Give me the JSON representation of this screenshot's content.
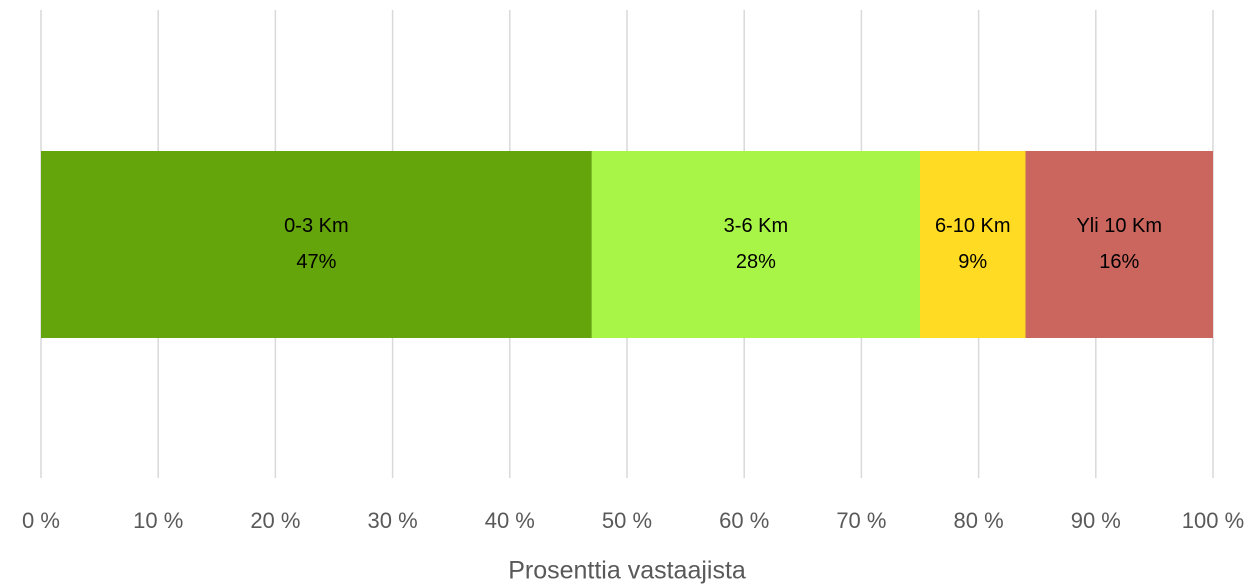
{
  "chart_data": {
    "type": "stacked-bar-horizontal",
    "x_label": "Prosenttia vastaajista",
    "categories": [
      null
    ],
    "series": [
      {
        "name": "0-3 Km",
        "color": "#63a50b",
        "values": [
          47
        ],
        "value_labels": [
          "47%"
        ]
      },
      {
        "name": "3-6 Km",
        "color": "#a9f547",
        "values": [
          28
        ],
        "value_labels": [
          "28%"
        ]
      },
      {
        "name": "6-10 Km",
        "color": "#ffdb24",
        "values": [
          9
        ],
        "value_labels": [
          "9%"
        ]
      },
      {
        "name": "Yli 10 Km",
        "color": "#cb665e",
        "values": [
          16
        ],
        "value_labels": [
          "16%"
        ]
      }
    ],
    "xlim": [
      0,
      100
    ],
    "xticks": [
      {
        "value": 0,
        "label": "0 %"
      },
      {
        "value": 10,
        "label": "10 %"
      },
      {
        "value": 20,
        "label": "20 %"
      },
      {
        "value": 30,
        "label": "30 %"
      },
      {
        "value": 40,
        "label": "40 %"
      },
      {
        "value": 50,
        "label": "50 %"
      },
      {
        "value": 60,
        "label": "60 %"
      },
      {
        "value": 70,
        "label": "70 %"
      },
      {
        "value": 80,
        "label": "80 %"
      },
      {
        "value": 90,
        "label": "90 %"
      },
      {
        "value": 100,
        "label": "100 %"
      }
    ],
    "grid": true
  }
}
